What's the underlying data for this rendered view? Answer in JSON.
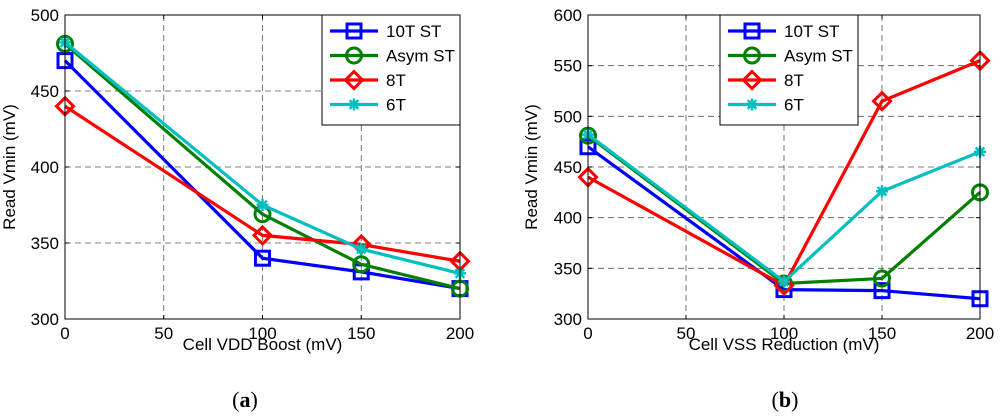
{
  "chart_data": [
    {
      "type": "line",
      "panel_caption_prefix": "(",
      "panel_caption_letter": "a",
      "panel_caption_suffix": ")",
      "xlabel": "Cell VDD Boost (mV)",
      "ylabel": "Read Vmin (mV)",
      "xlim": [
        0,
        200
      ],
      "ylim": [
        300,
        500
      ],
      "xticks": [
        0,
        50,
        100,
        150,
        200
      ],
      "yticks": [
        300,
        350,
        400,
        450,
        500
      ],
      "grid": true,
      "legend_position": "top-right",
      "x": [
        0,
        100,
        150,
        200
      ],
      "series": [
        {
          "name": "10T ST",
          "values": [
            470,
            340,
            331,
            320
          ],
          "color": "#0000ff",
          "marker": "square"
        },
        {
          "name": "Asym ST",
          "values": [
            481,
            369,
            336,
            320
          ],
          "color": "#008000",
          "marker": "circle"
        },
        {
          "name": "8T",
          "values": [
            440,
            355,
            349,
            338
          ],
          "color": "#ff0000",
          "marker": "diamond"
        },
        {
          "name": "6T",
          "values": [
            482,
            375,
            346,
            330
          ],
          "color": "#00bfbf",
          "marker": "asterisk"
        }
      ]
    },
    {
      "type": "line",
      "panel_caption_prefix": "(",
      "panel_caption_letter": "b",
      "panel_caption_suffix": ")",
      "xlabel": "Cell VSS Reduction (mV)",
      "ylabel": "Read Vmin (mV)",
      "xlim": [
        0,
        200
      ],
      "ylim": [
        300,
        600
      ],
      "xticks": [
        0,
        50,
        100,
        150,
        200
      ],
      "yticks": [
        300,
        350,
        400,
        450,
        500,
        550,
        600
      ],
      "grid": true,
      "legend_position": "top-left",
      "x": [
        0,
        100,
        150,
        200
      ],
      "series": [
        {
          "name": "10T ST",
          "values": [
            470,
            329,
            328,
            320
          ],
          "color": "#0000ff",
          "marker": "square"
        },
        {
          "name": "Asym ST",
          "values": [
            481,
            335,
            340,
            425
          ],
          "color": "#008000",
          "marker": "circle"
        },
        {
          "name": "8T",
          "values": [
            440,
            333,
            515,
            555
          ],
          "color": "#ff0000",
          "marker": "diamond"
        },
        {
          "name": "6T",
          "values": [
            482,
            337,
            426,
            465
          ],
          "color": "#00bfbf",
          "marker": "asterisk"
        }
      ]
    }
  ]
}
